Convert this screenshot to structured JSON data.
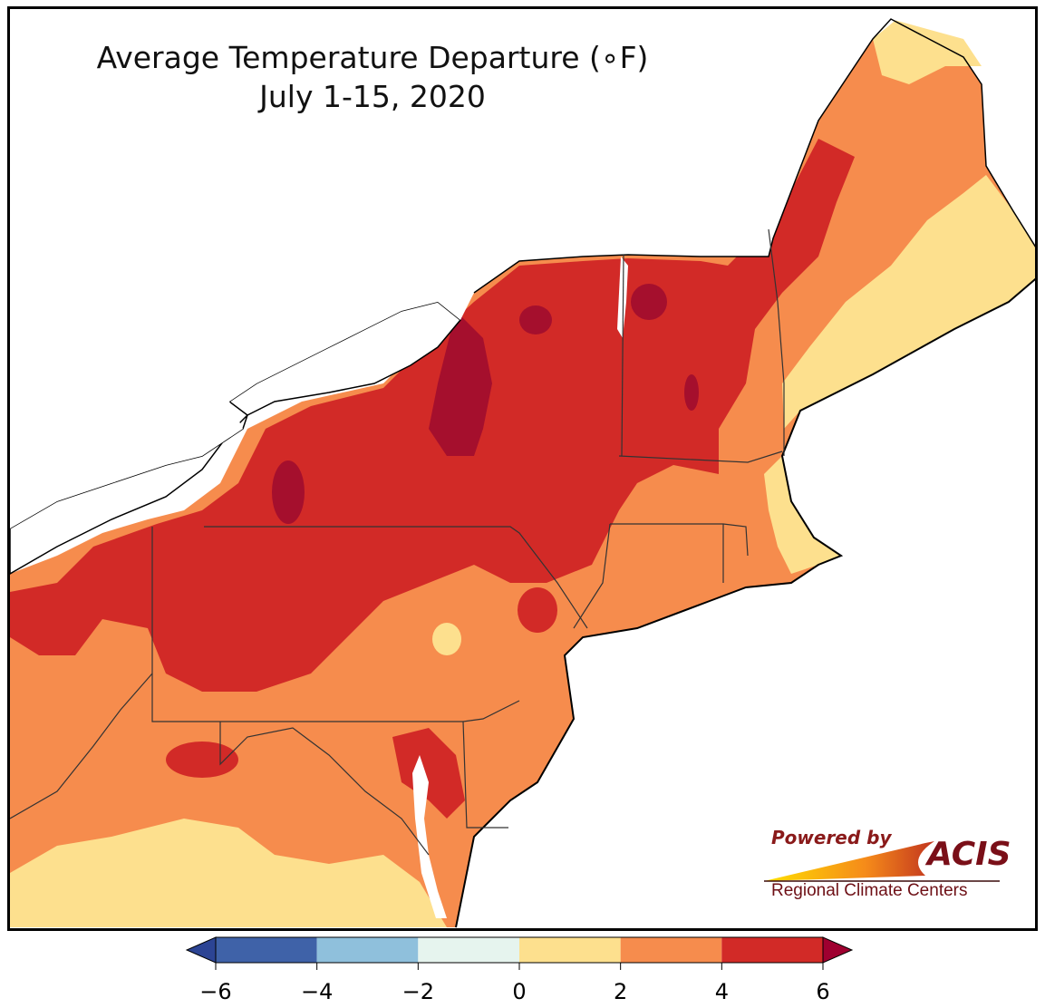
{
  "title": "Average Temperature Departure (∘F)",
  "subtitle": "July 1-15, 2020",
  "legend": {
    "ticks": [
      "−6",
      "−4",
      "−2",
      "0",
      "2",
      "4",
      "6"
    ],
    "bins": [
      {
        "range": "-6 to -4",
        "color": "#3f62a8"
      },
      {
        "range": "-4 to -2",
        "color": "#8fc0dc"
      },
      {
        "range": "-2 to 0",
        "color": "#e6f4ee"
      },
      {
        "range": "0 to 2",
        "color": "#fde08e"
      },
      {
        "range": "2 to 4",
        "color": "#f68c4d"
      },
      {
        "range": "4 to 6",
        "color": "#d22a27"
      }
    ],
    "under_color": "#2c4494",
    "over_color": "#9f0030"
  },
  "map_colors": {
    "water": "#ffffff",
    "above_6": "#a50f2d",
    "4_to_6": "#d22a27",
    "2_to_4": "#f68c4d",
    "0_to_2": "#fde08e",
    "-2_to_0": "#e6f4ee"
  },
  "logo": {
    "powered_by": "Powered by",
    "name": "ACIS",
    "tagline": "Regional Climate Centers"
  }
}
